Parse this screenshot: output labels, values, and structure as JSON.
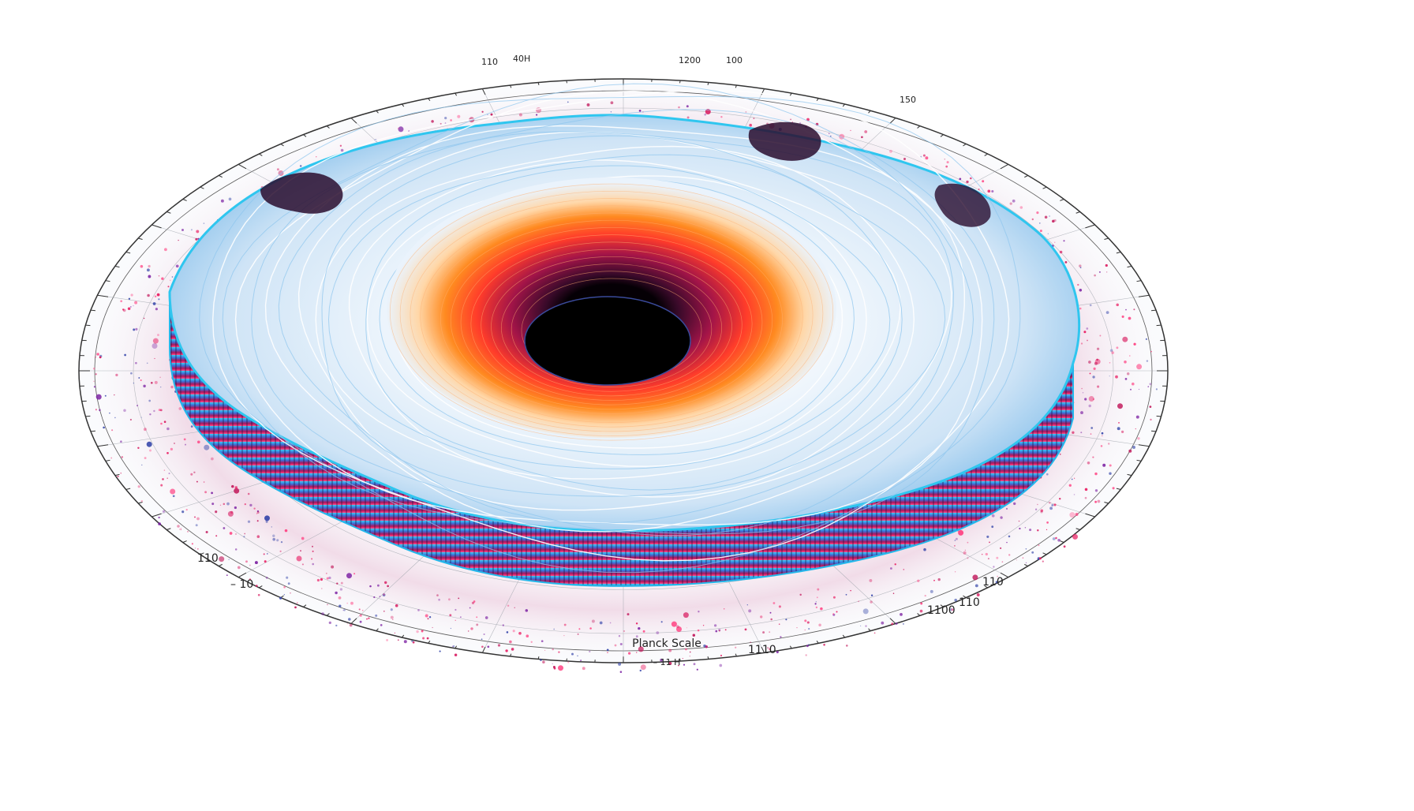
{
  "figure": {
    "center_label": "Planck Scale",
    "center_sublabel": "– 11 H",
    "left_labels": [
      "110",
      "– 10"
    ],
    "right_labels": [
      "1100",
      "110",
      "110"
    ],
    "bottom_right_label": "1110",
    "top_labels": [
      "110",
      "40H",
      "1200",
      "100",
      "150"
    ]
  },
  "colors": {
    "background": "#ffffff",
    "axis": "#333333",
    "grid": "#9aa0a8",
    "ice_light": "#e6f1fb",
    "ice_mid": "#a9d0f0",
    "cyan_edge": "#2fc6ef",
    "magenta_wall": "#c2185b",
    "orange_ring": "#ff6a1a",
    "core": "#000000"
  },
  "icons": {
    "particles": "scatter-dots-icon",
    "vortex": "funnel-vortex-icon"
  }
}
